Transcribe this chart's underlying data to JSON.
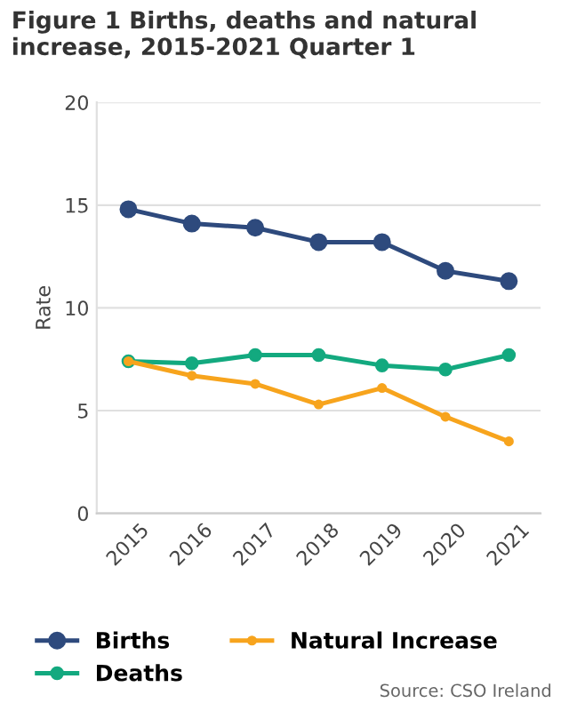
{
  "chart_data": {
    "type": "line",
    "title": "Figure 1 Births, deaths and natural increase, 2015-2021 Quarter 1",
    "ylabel": "Rate",
    "categories": [
      "2015",
      "2016",
      "2017",
      "2018",
      "2019",
      "2020",
      "2021"
    ],
    "series": [
      {
        "name": "Births",
        "color": "#2e4a7d",
        "values": [
          14.8,
          14.1,
          13.9,
          13.2,
          13.2,
          11.8,
          11.3
        ]
      },
      {
        "name": "Deaths",
        "color": "#13a97f",
        "values": [
          7.4,
          7.3,
          7.7,
          7.7,
          7.2,
          7.0,
          7.7
        ]
      },
      {
        "name": "Natural Increase",
        "color": "#f7a41d",
        "values": [
          7.4,
          6.7,
          6.3,
          5.3,
          6.1,
          4.7,
          3.5
        ]
      }
    ],
    "ylim": [
      0,
      20
    ],
    "yticks": [
      0,
      5,
      10,
      15,
      20
    ],
    "grid": "y",
    "legend": "bottom",
    "marker": "circle",
    "line_style": "solid",
    "annotations": [
      "Source: CSO Ireland"
    ]
  }
}
